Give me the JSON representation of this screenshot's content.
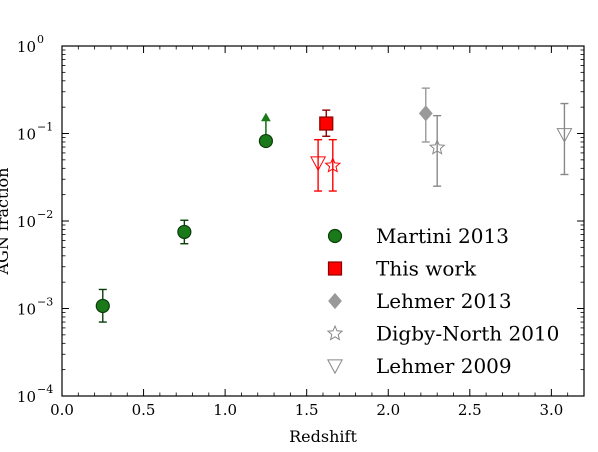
{
  "chart_data": {
    "type": "scatter",
    "xlabel": "Redshift",
    "ylabel": "AGN fraction",
    "xlim": [
      0.0,
      3.2
    ],
    "ylim": [
      0.0001,
      1
    ],
    "yscale": "log",
    "grid": false,
    "legend_position": "lower-right",
    "x_ticks": [
      {
        "value": 0.0,
        "label": "0.0"
      },
      {
        "value": 0.5,
        "label": "0.5"
      },
      {
        "value": 1.0,
        "label": "1.0"
      },
      {
        "value": 1.5,
        "label": "1.5"
      },
      {
        "value": 2.0,
        "label": "2.0"
      },
      {
        "value": 2.5,
        "label": "2.5"
      },
      {
        "value": 3.0,
        "label": "3.0"
      }
    ],
    "y_ticks": [
      {
        "value": 0.0001,
        "base": "10",
        "exp": "−4"
      },
      {
        "value": 0.001,
        "base": "10",
        "exp": "−3"
      },
      {
        "value": 0.01,
        "base": "10",
        "exp": "−2"
      },
      {
        "value": 0.1,
        "base": "10",
        "exp": "−1"
      },
      {
        "value": 1,
        "base": "10",
        "exp": "0"
      }
    ],
    "series": [
      {
        "name": "Martini 2013",
        "marker": "circle",
        "color": "#1a7a1a",
        "edge": "#0b3d0b",
        "filled": true,
        "points": [
          {
            "x": 0.25,
            "y": 0.00107,
            "ylo": 0.0007,
            "yhi": 0.00165
          },
          {
            "x": 0.75,
            "y": 0.0075,
            "ylo": 0.0055,
            "yhi": 0.0102
          },
          {
            "x": 1.25,
            "y": 0.082,
            "lower_limit": true,
            "arrow_to": 0.168
          }
        ]
      },
      {
        "name": "This work",
        "marker": "square",
        "color": "#ff0000",
        "edge": "#8b0000",
        "filled": true,
        "points": [
          {
            "x": 1.62,
            "y": 0.13,
            "ylo": 0.093,
            "yhi": 0.185
          }
        ]
      },
      {
        "name": "Lehmer 2013",
        "marker": "diamond",
        "color": "#999999",
        "edge": "#999999",
        "filled": true,
        "points": [
          {
            "x": 2.23,
            "y": 0.17,
            "ylo": 0.08,
            "yhi": 0.33
          }
        ]
      },
      {
        "name": "Digby-North 2010",
        "marker": "star",
        "color": "#888888",
        "edge": "#888888",
        "filled": false,
        "points": [
          {
            "x": 1.66,
            "y": 0.043,
            "ylo": 0.022,
            "yhi": 0.085,
            "errcolor": "#ff0000",
            "markercolor": "#ff0000"
          },
          {
            "x": 2.3,
            "y": 0.069,
            "ylo": 0.025,
            "yhi": 0.16
          }
        ]
      },
      {
        "name": "Lehmer 2009",
        "marker": "triangle-down",
        "color": "#888888",
        "edge": "#888888",
        "filled": false,
        "points": [
          {
            "x": 1.57,
            "y": 0.046,
            "ylo": 0.022,
            "yhi": 0.085,
            "errcolor": "#ff0000",
            "markercolor": "#ff0000"
          },
          {
            "x": 3.08,
            "y": 0.097,
            "ylo": 0.034,
            "yhi": 0.22
          }
        ]
      }
    ]
  }
}
